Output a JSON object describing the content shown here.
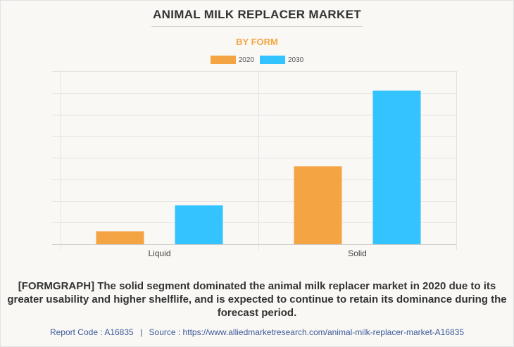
{
  "header": {
    "title": "ANIMAL MILK REPLACER MARKET",
    "subtitle": "BY FORM"
  },
  "legend": {
    "items": [
      {
        "label": "2020",
        "color": "#f4a442"
      },
      {
        "label": "2030",
        "color": "#33c4ff"
      }
    ]
  },
  "chart_data": {
    "type": "bar",
    "categories": [
      "Liquid",
      "Solid"
    ],
    "series": [
      {
        "name": "2020",
        "color": "#f4a442",
        "values": [
          0.6,
          3.6
        ]
      },
      {
        "name": "2030",
        "color": "#33c4ff",
        "values": [
          1.8,
          7.1
        ]
      }
    ],
    "ylim": [
      0,
      8
    ],
    "y_gridlines": 8,
    "grid": true,
    "legend_position": "top-center",
    "title": "ANIMAL MILK REPLACER MARKET",
    "subtitle": "BY FORM",
    "xlabel": "",
    "ylabel": ""
  },
  "caption": "[FORMGRAPH] The solid segment dominated the animal milk replacer market in 2020 due to its greater usability and higher shelflife, and is expected to continue to retain its dominance during the forecast period.",
  "footer": {
    "report_code": "Report Code : A16835",
    "separator": "|",
    "source": "Source : https://www.alliedmarketresearch.com/animal-milk-replacer-market-A16835"
  }
}
